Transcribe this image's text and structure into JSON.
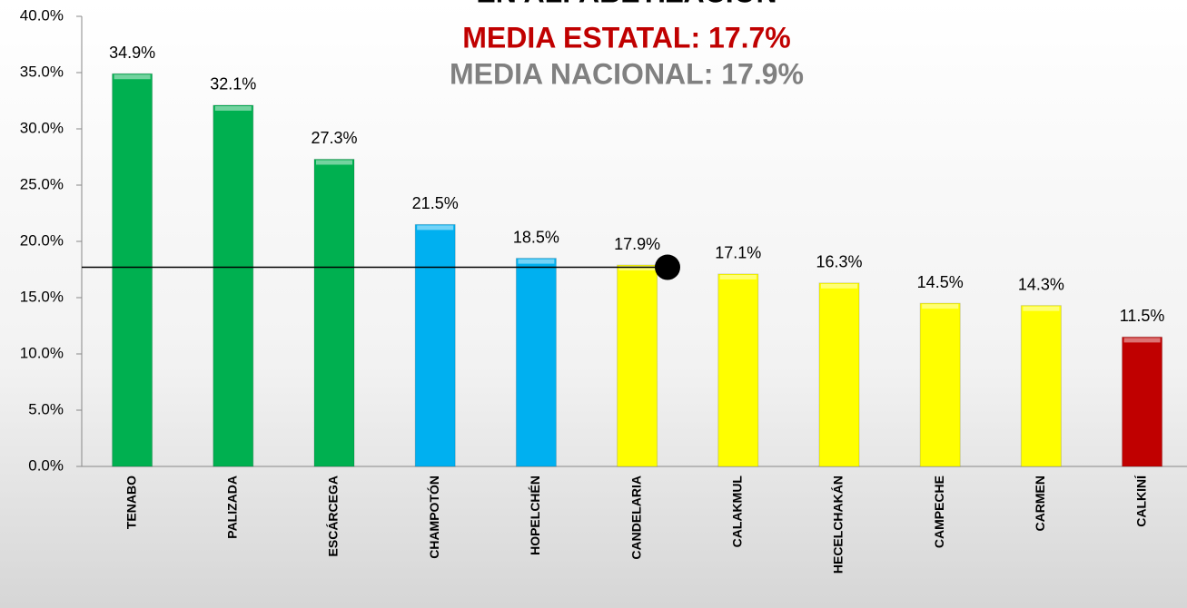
{
  "chart_data": {
    "type": "bar",
    "title": "EN ALFABETIZACIÓN",
    "subtitle": "MEDIA ESTATAL: 17.7%",
    "subtitle2": "MEDIA NACIONAL: 17.9%",
    "categories": [
      "TENABO",
      "PALIZADA",
      "ESCÁRCEGA",
      "CHAMPOTÓN",
      "HOPELCHÉN",
      "CANDELARIA",
      "CALAKMUL",
      "HECELCHAKÁN",
      "CAMPECHE",
      "CARMEN",
      "CALKINÍ"
    ],
    "values": [
      34.9,
      32.1,
      27.3,
      21.5,
      18.5,
      17.9,
      17.1,
      16.3,
      14.5,
      14.3,
      11.5
    ],
    "value_labels": [
      "34.9%",
      "32.1%",
      "27.3%",
      "21.5%",
      "18.5%",
      "17.9%",
      "17.1%",
      "16.3%",
      "14.5%",
      "14.3%",
      "11.5%"
    ],
    "colors": [
      "#00b050",
      "#00b050",
      "#00b050",
      "#00b0f0",
      "#00b0f0",
      "#ffff00",
      "#ffff00",
      "#ffff00",
      "#ffff00",
      "#ffff00",
      "#c00000"
    ],
    "reference_line": 17.7,
    "ylim": [
      0,
      40
    ],
    "yticks": [
      {
        "value": 0,
        "label": "0.0%"
      },
      {
        "value": 5,
        "label": "5.0%"
      },
      {
        "value": 10,
        "label": "10.0%"
      },
      {
        "value": 15,
        "label": "15.0%"
      },
      {
        "value": 20,
        "label": "20.0%"
      },
      {
        "value": 25,
        "label": "25.0%"
      },
      {
        "value": 30,
        "label": "30.0%"
      },
      {
        "value": 35,
        "label": "35.0%"
      },
      {
        "value": 40,
        "label": "40.0%"
      }
    ],
    "grid": false
  }
}
